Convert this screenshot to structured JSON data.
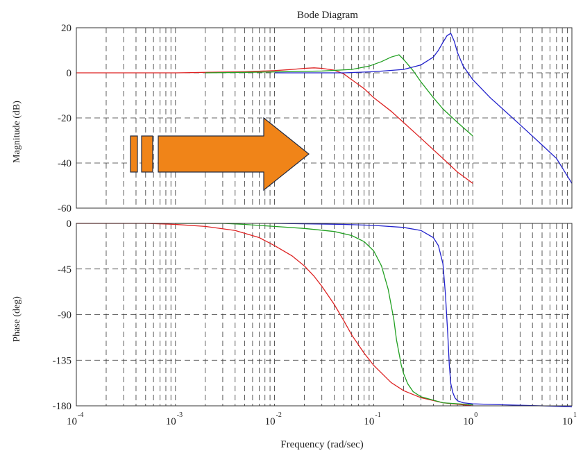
{
  "chart_data": {
    "type": "line",
    "title": "Bode Diagram",
    "xlabel": "Frequency (rad/sec)",
    "xscale": "log",
    "xlim": [
      0.0001,
      10
    ],
    "x_ticks": [
      {
        "base": "10",
        "exp": "-4"
      },
      {
        "base": "10",
        "exp": "-3"
      },
      {
        "base": "10",
        "exp": "-2"
      },
      {
        "base": "10",
        "exp": "-1"
      },
      {
        "base": "10",
        "exp": "0"
      },
      {
        "base": "10",
        "exp": "1"
      }
    ],
    "grid": true,
    "panels": [
      {
        "name": "magnitude",
        "ylabel": "Magnitude (dB)",
        "ylim": [
          -60,
          20
        ],
        "yticks": [
          "20",
          "0",
          "-20",
          "-40",
          "-60"
        ],
        "series": [
          {
            "color": "#dd2222",
            "x": [
              0.0001,
              0.001,
              0.002,
              0.005,
              0.01,
              0.015,
              0.02,
              0.025,
              0.03,
              0.04,
              0.05,
              0.06,
              0.08,
              0.1,
              0.15,
              0.2,
              0.3,
              0.5,
              0.7,
              1.0
            ],
            "y": [
              0,
              0,
              0.2,
              0.5,
              1.0,
              1.5,
              2.0,
              2.2,
              2.0,
              1.2,
              -0.5,
              -3,
              -7,
              -11,
              -17,
              -22,
              -29,
              -38,
              -44,
              -49
            ]
          },
          {
            "color": "#22a022",
            "x": [
              0.002,
              0.005,
              0.01,
              0.03,
              0.06,
              0.09,
              0.12,
              0.15,
              0.18,
              0.2,
              0.25,
              0.3,
              0.4,
              0.5,
              0.7,
              1.0
            ],
            "y": [
              0,
              0.2,
              0.4,
              0.8,
              1.5,
              3,
              5,
              7,
              8,
              6,
              1,
              -4,
              -11,
              -16,
              -22,
              -28
            ]
          },
          {
            "color": "#2222cc",
            "x": [
              0.01,
              0.05,
              0.1,
              0.2,
              0.3,
              0.4,
              0.45,
              0.5,
              0.55,
              0.6,
              0.65,
              0.7,
              0.8,
              1.0,
              1.5,
              2,
              3,
              5,
              7,
              10
            ],
            "y": [
              0,
              0,
              0.5,
              1.5,
              3.5,
              7,
              10,
              13.5,
              16.5,
              17.5,
              14,
              9,
              3,
              -3,
              -11,
              -16,
              -23,
              -32,
              -38,
              -49
            ]
          }
        ]
      },
      {
        "name": "phase",
        "ylabel": "Phase (deg)",
        "ylim": [
          -180,
          0
        ],
        "yticks": [
          "0",
          "-45",
          "-90",
          "-135",
          "-180"
        ],
        "series": [
          {
            "color": "#dd2222",
            "x": [
              0.0001,
              0.0005,
              0.001,
              0.002,
              0.004,
              0.007,
              0.01,
              0.015,
              0.02,
              0.025,
              0.03,
              0.04,
              0.05,
              0.06,
              0.08,
              0.1,
              0.15,
              0.2,
              0.3,
              0.5,
              1.0
            ],
            "y": [
              0,
              0,
              -1,
              -3,
              -7,
              -14,
              -22,
              -32,
              -42,
              -52,
              -62,
              -80,
              -96,
              -110,
              -128,
              -140,
              -157,
              -165,
              -172,
              -177,
              -180
            ]
          },
          {
            "color": "#22a022",
            "x": [
              0.001,
              0.003,
              0.005,
              0.01,
              0.02,
              0.04,
              0.06,
              0.08,
              0.1,
              0.12,
              0.14,
              0.16,
              0.17,
              0.18,
              0.19,
              0.2,
              0.22,
              0.25,
              0.3,
              0.5,
              1.0
            ],
            "y": [
              0,
              0,
              -1,
              -3,
              -5,
              -8,
              -12,
              -18,
              -27,
              -42,
              -65,
              -95,
              -115,
              -128,
              -140,
              -148,
              -158,
              -166,
              -171,
              -177,
              -179
            ]
          },
          {
            "color": "#2222cc",
            "x": [
              0.01,
              0.05,
              0.1,
              0.2,
              0.3,
              0.4,
              0.45,
              0.5,
              0.53,
              0.56,
              0.58,
              0.6,
              0.63,
              0.66,
              0.7,
              0.8,
              1.0,
              2,
              5,
              10
            ],
            "y": [
              0,
              -1,
              -2,
              -4,
              -7,
              -14,
              -22,
              -40,
              -70,
              -110,
              -140,
              -158,
              -167,
              -172,
              -175,
              -177,
              -178,
              -179,
              -180,
              -181
            ]
          }
        ]
      }
    ]
  },
  "arrow": {
    "direction": "right",
    "fill": "#f08418",
    "stroke": "#222a40"
  }
}
